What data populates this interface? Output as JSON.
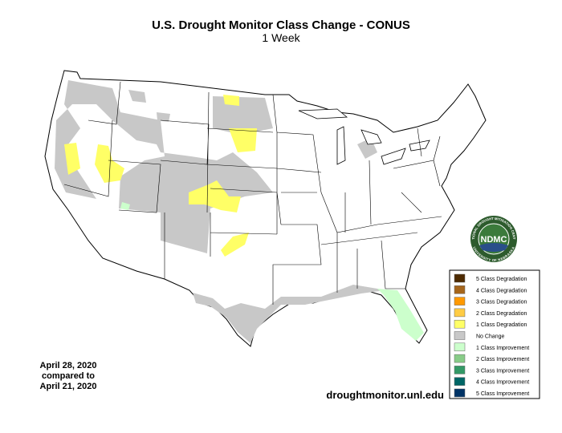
{
  "title": "U.S. Drought Monitor Class Change - CONUS",
  "subtitle": "1 Week",
  "date_note": [
    "April 28, 2020",
    "compared to",
    "April 21, 2020"
  ],
  "source": "droughtmonitor.unl.edu",
  "logo": {
    "text": "NDMC",
    "ring_top": "NATIONAL DROUGHT MITIGATION CENTER",
    "ring_bottom": "UNIVERSITY OF NEBRASKA"
  },
  "legend": [
    {
      "label": "5 Class Degradation",
      "color": "#4d2a00"
    },
    {
      "label": "4 Class Degradation",
      "color": "#a6661c"
    },
    {
      "label": "3 Class Degradation",
      "color": "#ff9900"
    },
    {
      "label": "2 Class Degradation",
      "color": "#ffcc44"
    },
    {
      "label": "1 Class Degradation",
      "color": "#ffff66"
    },
    {
      "label": "No Change",
      "color": "#c8c8c8"
    },
    {
      "label": "1 Class Improvement",
      "color": "#ccffcc"
    },
    {
      "label": "2 Class Improvement",
      "color": "#88cc88"
    },
    {
      "label": "3 Class Improvement",
      "color": "#339966"
    },
    {
      "label": "4 Class Improvement",
      "color": "#006666"
    },
    {
      "label": "5 Class Improvement",
      "color": "#003366"
    }
  ]
}
